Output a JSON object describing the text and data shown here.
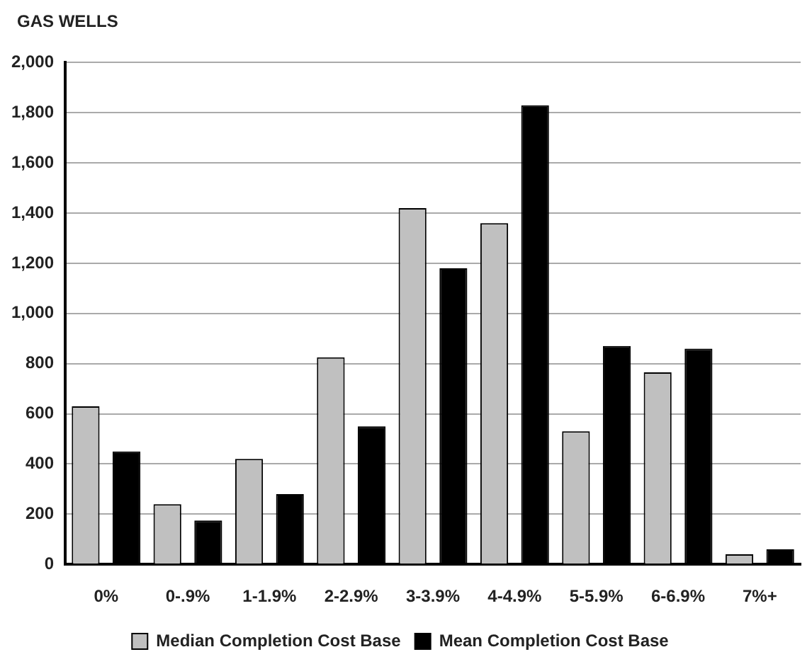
{
  "chart_data": {
    "type": "bar",
    "title": "GAS WELLS",
    "categories": [
      "0%",
      "0-.9%",
      "1-1.9%",
      "2-2.9%",
      "3-3.9%",
      "4-4.9%",
      "5-5.9%",
      "6-6.9%",
      "7%+"
    ],
    "series": [
      {
        "name": "Median Completion Cost Base",
        "color": "#c0c0c0",
        "values": [
          630,
          240,
          420,
          825,
          1420,
          1360,
          530,
          765,
          40
        ]
      },
      {
        "name": "Mean Completion Cost Base",
        "color": "#000000",
        "values": [
          450,
          175,
          280,
          550,
          1180,
          1830,
          870,
          860,
          60
        ]
      }
    ],
    "ylim": [
      0,
      2000
    ],
    "yticks": [
      {
        "value": 0,
        "label": "0"
      },
      {
        "value": 200,
        "label": "200"
      },
      {
        "value": 400,
        "label": "400"
      },
      {
        "value": 600,
        "label": "600"
      },
      {
        "value": 800,
        "label": "800"
      },
      {
        "value": 1000,
        "label": "1,000"
      },
      {
        "value": 1200,
        "label": "1,200"
      },
      {
        "value": 1400,
        "label": "1,400"
      },
      {
        "value": 1600,
        "label": "1,600"
      },
      {
        "value": 1800,
        "label": "1,800"
      },
      {
        "value": 2000,
        "label": "2,000"
      }
    ],
    "grid": "y",
    "legend": "bottom"
  }
}
